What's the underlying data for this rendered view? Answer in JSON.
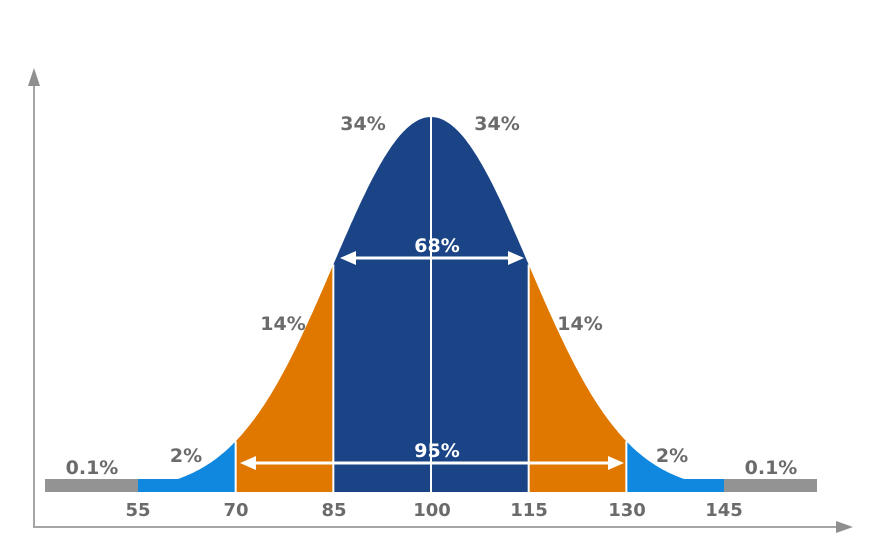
{
  "chart_data": {
    "type": "area",
    "title": "",
    "xlabel": "",
    "ylabel": "",
    "description": "Normal distribution (bell curve) with mean 100 and standard deviation 15, shaded by standard deviation bands",
    "x_ticks": [
      "55",
      "70",
      "85",
      "100",
      "115",
      "130",
      "145"
    ],
    "mean": 100,
    "sd": 15,
    "bands": [
      {
        "name": "below 55",
        "range": [
          null,
          55
        ],
        "percent": "0.1%",
        "color": "#939393"
      },
      {
        "name": "55-70",
        "range": [
          55,
          70
        ],
        "percent": "2%",
        "color": "#1188e0"
      },
      {
        "name": "70-85",
        "range": [
          70,
          85
        ],
        "percent": "14%",
        "color": "#e07800"
      },
      {
        "name": "85-100",
        "range": [
          85,
          100
        ],
        "percent": "34%",
        "color": "#1a4486"
      },
      {
        "name": "100-115",
        "range": [
          100,
          115
        ],
        "percent": "34%",
        "color": "#1a4486"
      },
      {
        "name": "115-130",
        "range": [
          115,
          130
        ],
        "percent": "14%",
        "color": "#e07800"
      },
      {
        "name": "130-145",
        "range": [
          130,
          145
        ],
        "percent": "2%",
        "color": "#1188e0"
      },
      {
        "name": "above 145",
        "range": [
          145,
          null
        ],
        "percent": "0.1%",
        "color": "#939393"
      }
    ],
    "annotations": [
      {
        "label": "68%",
        "range": [
          85,
          115
        ]
      },
      {
        "label": "95%",
        "range": [
          70,
          130
        ]
      }
    ],
    "grid": false,
    "legend": false
  },
  "labels": {
    "tail_left": "0.1%",
    "tail_right": "0.1%",
    "blue_left": "2%",
    "blue_right": "2%",
    "orange_left": "14%",
    "orange_right": "14%",
    "navy_left": "34%",
    "navy_right": "34%",
    "span_68": "68%",
    "span_95": "95%"
  },
  "ticks": [
    "55",
    "70",
    "85",
    "100",
    "115",
    "130",
    "145"
  ],
  "colors": {
    "gray": "#939393",
    "blue": "#1188e0",
    "orange": "#e07800",
    "navy": "#1a4486",
    "axis": "#9a9a9a",
    "text": "#6b6b6b"
  }
}
